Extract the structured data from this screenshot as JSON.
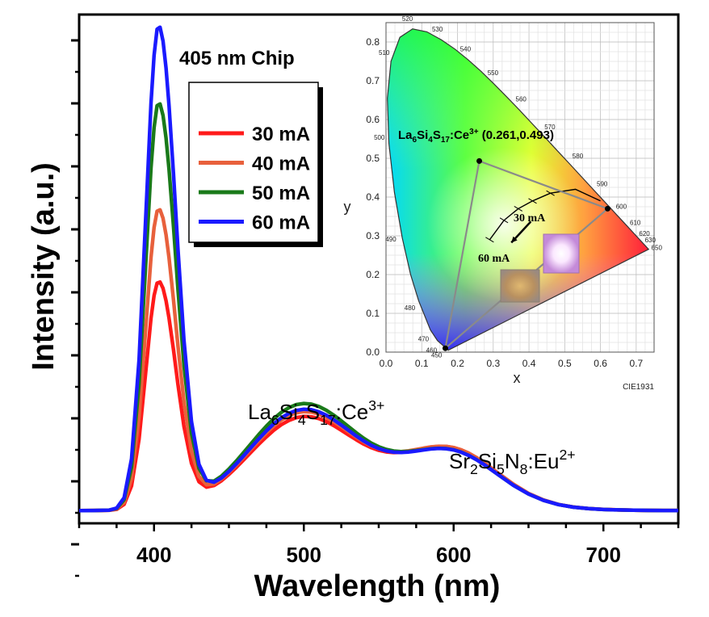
{
  "chart_data": [
    {
      "type": "line",
      "xlabel": "Wavelength (nm)",
      "ylabel": "Intensity (a.u.)",
      "xlim": [
        350,
        750
      ],
      "x_ticks": [
        "400",
        "500",
        "600",
        "700"
      ],
      "y_tick_labels": "none",
      "legend_title": "405 nm Chip",
      "legend_position": "top-left (inside)",
      "series": [
        {
          "name": "30 mA",
          "color": "#ff1a1a",
          "peak_405": 0.47,
          "band_500": 0.168,
          "shoulder_600": 0.09
        },
        {
          "name": "40 mA",
          "color": "#e8603c",
          "peak_405": 0.62,
          "band_500": 0.178,
          "shoulder_600": 0.09
        },
        {
          "name": "50 mA",
          "color": "#1a7a1a",
          "peak_405": 0.84,
          "band_500": 0.195,
          "shoulder_600": 0.085
        },
        {
          "name": "60 mA",
          "color": "#1a1aff",
          "peak_405": 1.0,
          "band_500": 0.183,
          "shoulder_600": 0.085
        }
      ],
      "x": [
        350,
        360,
        370,
        375,
        380,
        385,
        390,
        395,
        398,
        400,
        402,
        404,
        406,
        408,
        410,
        413,
        416,
        420,
        425,
        430,
        435,
        440,
        445,
        450,
        455,
        460,
        465,
        470,
        475,
        480,
        485,
        490,
        495,
        500,
        505,
        510,
        515,
        520,
        525,
        530,
        535,
        540,
        545,
        550,
        555,
        560,
        565,
        570,
        575,
        580,
        585,
        590,
        595,
        600,
        605,
        610,
        615,
        620,
        625,
        630,
        640,
        650,
        660,
        670,
        680,
        690,
        700,
        710,
        720,
        730,
        740,
        750
      ],
      "annotations": [
        {
          "text": "La6Si4S17:Ce3+",
          "base": "La",
          "subscripts": [
            "6",
            "4",
            "17"
          ],
          "superscript": "3+"
        },
        {
          "text": "Sr2Si5N8:Eu2+",
          "base": "Sr",
          "subscripts": [
            "2",
            "5",
            "8"
          ],
          "superscript": "2+"
        }
      ]
    },
    {
      "type": "scatter",
      "title": "",
      "xlabel": "x",
      "ylabel": "y",
      "xlim": [
        0,
        0.75
      ],
      "ylim": [
        0,
        0.85
      ],
      "x_ticks": [
        "0.0",
        "0.1",
        "0.2",
        "0.3",
        "0.4",
        "0.5",
        "0.6",
        "0.7"
      ],
      "y_ticks": [
        "0.0",
        "0.1",
        "0.2",
        "0.3",
        "0.4",
        "0.5",
        "0.6",
        "0.7",
        "0.8"
      ],
      "grid": true,
      "footer": "CIE1931",
      "locus": [
        [
          0.1741,
          0.005
        ],
        [
          0.144,
          0.0297
        ],
        [
          0.1241,
          0.0578
        ],
        [
          0.0913,
          0.1327
        ],
        [
          0.0687,
          0.2007
        ],
        [
          0.0454,
          0.295
        ],
        [
          0.0235,
          0.4127
        ],
        [
          0.0082,
          0.5384
        ],
        [
          0.0039,
          0.6548
        ],
        [
          0.0139,
          0.7502
        ],
        [
          0.0389,
          0.812
        ],
        [
          0.0743,
          0.8338
        ],
        [
          0.1142,
          0.8262
        ],
        [
          0.1547,
          0.8059
        ],
        [
          0.1929,
          0.7816
        ],
        [
          0.2296,
          0.7543
        ],
        [
          0.2658,
          0.7243
        ],
        [
          0.3016,
          0.6923
        ],
        [
          0.3373,
          0.6589
        ],
        [
          0.3731,
          0.6245
        ],
        [
          0.4087,
          0.5896
        ],
        [
          0.4441,
          0.5547
        ],
        [
          0.4788,
          0.5202
        ],
        [
          0.5125,
          0.4866
        ],
        [
          0.5448,
          0.4544
        ],
        [
          0.5752,
          0.4242
        ],
        [
          0.6029,
          0.3965
        ],
        [
          0.627,
          0.3725
        ],
        [
          0.6482,
          0.3514
        ],
        [
          0.6658,
          0.334
        ],
        [
          0.6915,
          0.3083
        ],
        [
          0.7347,
          0.2653
        ]
      ],
      "wavelength_labels": [
        {
          "label": "450",
          "x": 0.157,
          "y": 0.018
        },
        {
          "label": "460",
          "x": 0.144,
          "y": 0.03
        },
        {
          "label": "470",
          "x": 0.124,
          "y": 0.058
        },
        {
          "label": "480",
          "x": 0.091,
          "y": 0.133
        },
        {
          "label": "490",
          "x": 0.045,
          "y": 0.295
        },
        {
          "label": "500",
          "x": 0.008,
          "y": 0.538
        },
        {
          "label": "510",
          "x": 0.0139,
          "y": 0.75
        },
        {
          "label": "520",
          "x": 0.0743,
          "y": 0.834
        },
        {
          "label": "530",
          "x": 0.1547,
          "y": 0.806
        },
        {
          "label": "540",
          "x": 0.2296,
          "y": 0.754
        },
        {
          "label": "550",
          "x": 0.3016,
          "y": 0.692
        },
        {
          "label": "560",
          "x": 0.3731,
          "y": 0.624
        },
        {
          "label": "570",
          "x": 0.4441,
          "y": 0.555
        },
        {
          "label": "580",
          "x": 0.5125,
          "y": 0.487
        },
        {
          "label": "590",
          "x": 0.5752,
          "y": 0.424
        },
        {
          "label": "600",
          "x": 0.627,
          "y": 0.372
        },
        {
          "label": "610",
          "x": 0.6658,
          "y": 0.334
        },
        {
          "label": "620",
          "x": 0.6915,
          "y": 0.308
        },
        {
          "label": "630",
          "x": 0.7079,
          "y": 0.292
        },
        {
          "label": "650",
          "x": 0.726,
          "y": 0.274
        }
      ],
      "gamut_points": [
        [
          0.261,
          0.493
        ],
        [
          0.62,
          0.37
        ],
        [
          0.166,
          0.01
        ]
      ],
      "planckian": [
        [
          0.6,
          0.39
        ],
        [
          0.53,
          0.42
        ],
        [
          0.46,
          0.41
        ],
        [
          0.41,
          0.39
        ],
        [
          0.37,
          0.37
        ],
        [
          0.33,
          0.34
        ],
        [
          0.29,
          0.29
        ]
      ],
      "arrow": {
        "from": [
          0.36,
          0.32
        ],
        "to": [
          0.31,
          0.27
        ]
      },
      "labels": {
        "point_text": "La6Si4S17:Ce3+ (0.261,0.493)",
        "point_base": "La",
        "point_subs": [
          "6",
          "4",
          "17"
        ],
        "point_sup": "3+",
        "point_coords": "(0.261,0.493)",
        "current_high": "30 mA",
        "current_low": "60 mA"
      }
    }
  ]
}
